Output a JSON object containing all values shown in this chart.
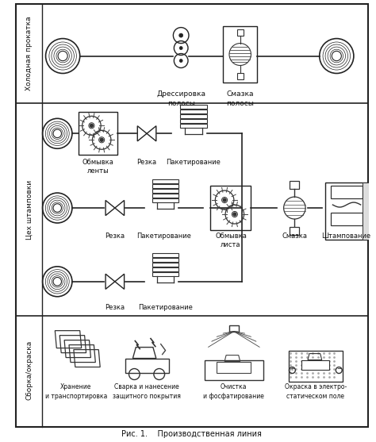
{
  "title": "Рис. 1.    Производственная линия",
  "section1_label": "Холодная прокатка",
  "section2_label": "Цех штамповки",
  "section3_label": "Сборка/окраска",
  "section1_labels": [
    "Дрессировка\nполосы",
    "Смазка\nполосы"
  ],
  "section2_row1_labels": [
    "Обмывка\nленты",
    "Резка",
    "Пакетирование"
  ],
  "section2_row2_labels": [
    "Резка",
    "Пакетирование",
    "Обмывка\nлиста",
    "Смазка",
    "Штампование"
  ],
  "section2_row3_labels": [
    "Резка",
    "Пакетирование"
  ],
  "section3_labels": [
    "Хранение\nи транспортировка",
    "Сварка и нанесение\nзащитного покрытия",
    "Очистка\nи фосфатирование",
    "Окраска в электро-\nстатическом поле"
  ],
  "bg_color": "#ffffff",
  "border_color": "#222222",
  "text_color": "#111111"
}
